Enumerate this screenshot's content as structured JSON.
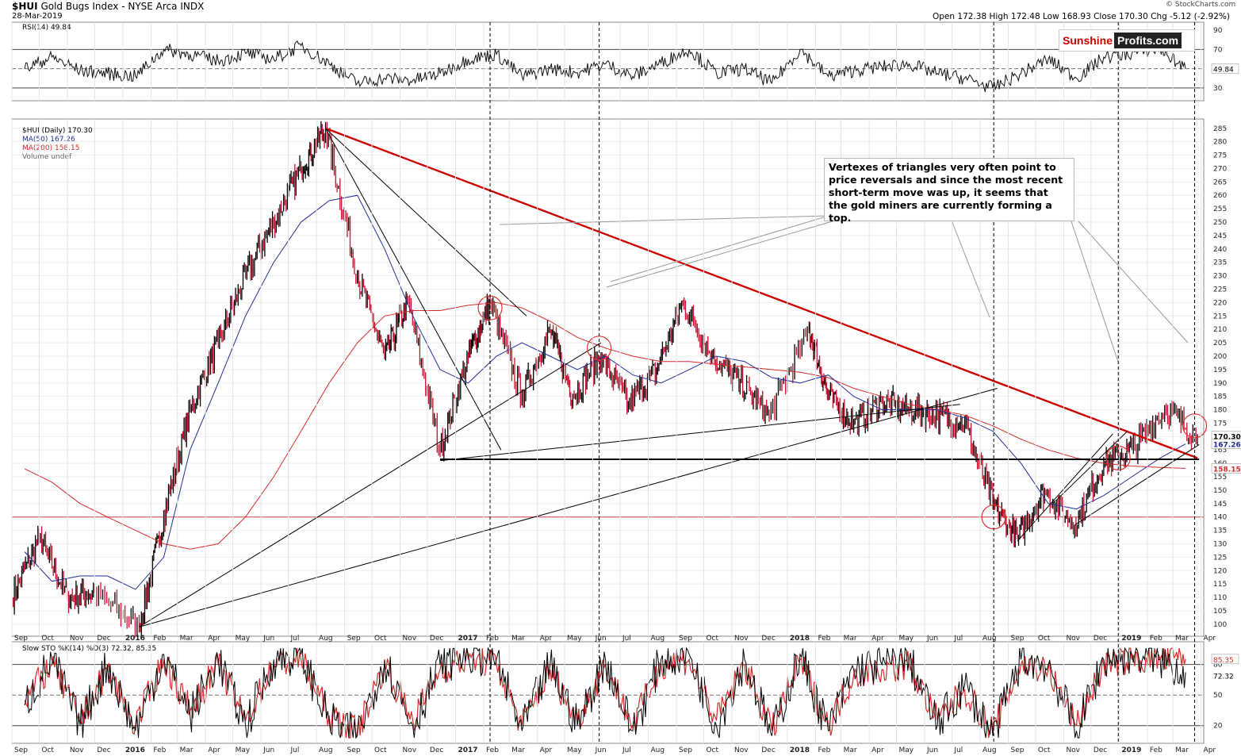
{
  "header": {
    "symbol": "$HUI",
    "name": "Gold Bugs Index - NYSE Arca INDX",
    "date": "28-Mar-2019",
    "ohlc": "Open 172.38  High 172.48  Low 168.93  Close 170.30  Chg -5.12 (-2.92%)",
    "copyright": "© StockCharts.com"
  },
  "logo": {
    "part1": "Sunshine",
    "part2": "Profits.com"
  },
  "annotation": "Vertexes of triangles very often point to price reversals and since the most recent short-term move was up, it seems that the gold miners are currently forming a top.",
  "rsi_panel": {
    "label": "RSI(14) 49.84",
    "ticks": [
      "90",
      "70",
      "50",
      "30"
    ],
    "value_tag": "49.84"
  },
  "price_panel": {
    "legend": [
      "$HUI (Daily) 170.30",
      "MA(50) 167.26",
      "MA(200) 158.15",
      "Volume undef"
    ],
    "value_tags": [
      "170.30",
      "167.26",
      "158.15"
    ]
  },
  "stoch_panel": {
    "label": "Slow STO %K(14) %D(3) 72.32, 85.35",
    "ticks": [
      "80",
      "50",
      "20"
    ],
    "value_tags": [
      "85.35",
      "72.32"
    ]
  },
  "colors": {
    "up": "#000000",
    "down": "#c8102e",
    "ma50": "#1f2d9a",
    "ma200": "#d62b2b",
    "trend_red": "#cc0000"
  },
  "chart_data": [
    {
      "type": "line",
      "title": "RSI(14)",
      "ylim": [
        20,
        95
      ],
      "reference_lines": [
        30,
        50,
        70
      ],
      "x": [
        "2015-09",
        "2015-10",
        "2015-11",
        "2015-12",
        "2016-01",
        "2016-02",
        "2016-03",
        "2016-04",
        "2016-05",
        "2016-06",
        "2016-07",
        "2016-08",
        "2016-09",
        "2016-10",
        "2016-11",
        "2016-12",
        "2017-01",
        "2017-02",
        "2017-03",
        "2017-04",
        "2017-05",
        "2017-06",
        "2017-07",
        "2017-08",
        "2017-09",
        "2017-10",
        "2017-11",
        "2017-12",
        "2018-01",
        "2018-02",
        "2018-03",
        "2018-04",
        "2018-05",
        "2018-06",
        "2018-07",
        "2018-08",
        "2018-09",
        "2018-10",
        "2018-11",
        "2018-12",
        "2019-01",
        "2019-02",
        "2019-03"
      ],
      "values": [
        50,
        62,
        48,
        45,
        42,
        70,
        65,
        58,
        66,
        60,
        74,
        55,
        35,
        40,
        38,
        45,
        60,
        65,
        42,
        50,
        46,
        55,
        42,
        56,
        70,
        45,
        50,
        35,
        70,
        42,
        48,
        52,
        55,
        45,
        40,
        30,
        45,
        60,
        40,
        62,
        66,
        70,
        50
      ]
    },
    {
      "type": "line",
      "title": "$HUI (Daily) 170.30",
      "xlabel": "",
      "ylabel": "",
      "ylim": [
        97,
        287
      ],
      "x_ticks": [
        "Sep",
        "Oct",
        "Nov",
        "Dec",
        "2016",
        "Feb",
        "Mar",
        "Apr",
        "May",
        "Jun",
        "Jul",
        "Aug",
        "Sep",
        "Oct",
        "Nov",
        "Dec",
        "2017",
        "Feb",
        "Mar",
        "Apr",
        "May",
        "Jun",
        "Jul",
        "Aug",
        "Sep",
        "Oct",
        "Nov",
        "Dec",
        "2018",
        "Feb",
        "Mar",
        "Apr",
        "May",
        "Jun",
        "Jul",
        "Aug",
        "Sep",
        "Oct",
        "Nov",
        "Dec",
        "2019",
        "Feb",
        "Mar",
        "Apr"
      ],
      "y_ticks": [
        100,
        105,
        110,
        115,
        120,
        125,
        130,
        135,
        140,
        145,
        150,
        155,
        160,
        165,
        170,
        175,
        180,
        185,
        190,
        195,
        200,
        205,
        210,
        215,
        220,
        225,
        230,
        235,
        240,
        245,
        250,
        255,
        260,
        265,
        270,
        275,
        280,
        285
      ],
      "series": [
        {
          "name": "$HUI (Daily) 170.30",
          "x": [
            "2015-09-01",
            "2015-10-01",
            "2015-11-01",
            "2015-12-01",
            "2016-01-19",
            "2016-02-15",
            "2016-03-15",
            "2016-04-15",
            "2016-05-15",
            "2016-06-15",
            "2016-07-15",
            "2016-08-11",
            "2016-09-15",
            "2016-10-15",
            "2016-11-10",
            "2016-12-15",
            "2017-01-15",
            "2017-02-08",
            "2017-03-15",
            "2017-04-15",
            "2017-05-10",
            "2017-06-10",
            "2017-07-10",
            "2017-08-10",
            "2017-09-08",
            "2017-10-10",
            "2017-11-10",
            "2017-12-12",
            "2018-01-25",
            "2018-02-15",
            "2018-03-15",
            "2018-04-15",
            "2018-05-15",
            "2018-06-15",
            "2018-07-15",
            "2018-08-15",
            "2018-09-11",
            "2018-10-11",
            "2018-11-13",
            "2018-12-15",
            "2019-01-15",
            "2019-02-20",
            "2019-03-28"
          ],
          "values": [
            110,
            132,
            110,
            112,
            99,
            140,
            180,
            205,
            230,
            250,
            270,
            285,
            230,
            200,
            220,
            165,
            200,
            220,
            185,
            210,
            185,
            200,
            182,
            195,
            220,
            200,
            190,
            178,
            210,
            185,
            175,
            183,
            180,
            178,
            175,
            145,
            132,
            150,
            137,
            160,
            165,
            180,
            170.3
          ]
        },
        {
          "name": "MA(50) 167.26",
          "x": [
            "2015-09",
            "2015-10",
            "2015-11",
            "2015-12",
            "2016-01",
            "2016-02",
            "2016-03",
            "2016-04",
            "2016-05",
            "2016-06",
            "2016-07",
            "2016-08",
            "2016-09",
            "2016-10",
            "2016-11",
            "2016-12",
            "2017-01",
            "2017-02",
            "2017-03",
            "2017-04",
            "2017-05",
            "2017-06",
            "2017-07",
            "2017-08",
            "2017-09",
            "2017-10",
            "2017-11",
            "2017-12",
            "2018-01",
            "2018-02",
            "2018-03",
            "2018-04",
            "2018-05",
            "2018-06",
            "2018-07",
            "2018-08",
            "2018-09",
            "2018-10",
            "2018-11",
            "2018-12",
            "2019-01",
            "2019-02",
            "2019-03"
          ],
          "values": [
            127,
            116,
            118,
            118,
            113,
            125,
            165,
            190,
            215,
            235,
            250,
            258,
            260,
            240,
            215,
            195,
            190,
            200,
            205,
            200,
            195,
            200,
            193,
            190,
            195,
            200,
            198,
            192,
            190,
            193,
            185,
            180,
            180,
            180,
            177,
            172,
            160,
            145,
            143,
            148,
            155,
            162,
            167.26
          ]
        },
        {
          "name": "MA(200) 158.15",
          "x": [
            "2015-09",
            "2015-10",
            "2015-11",
            "2015-12",
            "2016-01",
            "2016-02",
            "2016-03",
            "2016-04",
            "2016-05",
            "2016-06",
            "2016-07",
            "2016-08",
            "2016-09",
            "2016-10",
            "2016-11",
            "2016-12",
            "2017-01",
            "2017-02",
            "2017-03",
            "2017-04",
            "2017-05",
            "2017-06",
            "2017-07",
            "2017-08",
            "2017-09",
            "2017-10",
            "2017-11",
            "2017-12",
            "2018-01",
            "2018-02",
            "2018-03",
            "2018-04",
            "2018-05",
            "2018-06",
            "2018-07",
            "2018-08",
            "2018-09",
            "2018-10",
            "2018-11",
            "2018-12",
            "2019-01",
            "2019-02",
            "2019-03"
          ],
          "values": [
            158,
            153,
            145,
            140,
            135,
            130,
            128,
            130,
            140,
            155,
            172,
            190,
            205,
            215,
            217,
            217,
            219,
            220,
            218,
            213,
            207,
            203,
            200,
            198,
            198,
            197,
            196,
            195,
            194,
            192,
            188,
            185,
            182,
            180,
            178,
            174,
            169,
            165,
            162,
            160,
            159,
            158.5,
            158.15
          ]
        }
      ]
    },
    {
      "type": "line",
      "title": "Slow STO %K(14) %D(3) 72.32, 85.35",
      "ylim": [
        5,
        100
      ],
      "reference_lines": [
        20,
        50,
        80
      ],
      "series": [
        {
          "name": "%K(14)",
          "values": [
            40,
            85,
            20,
            80,
            15,
            90,
            30,
            85,
            20,
            85,
            90,
            25,
            10,
            85,
            20,
            80,
            90,
            85,
            15,
            80,
            20,
            85,
            15,
            85,
            90,
            20,
            85,
            10,
            90,
            15,
            75,
            80,
            85,
            20,
            60,
            10,
            85,
            80,
            15,
            85,
            90,
            85,
            72.32
          ]
        },
        {
          "name": "%D(3)",
          "values": [
            45,
            80,
            25,
            75,
            20,
            85,
            35,
            80,
            25,
            80,
            85,
            30,
            15,
            80,
            25,
            75,
            85,
            80,
            20,
            75,
            25,
            80,
            20,
            80,
            85,
            25,
            80,
            15,
            85,
            20,
            70,
            75,
            80,
            25,
            55,
            15,
            80,
            75,
            20,
            80,
            85,
            85,
            85.35
          ]
        }
      ]
    }
  ]
}
